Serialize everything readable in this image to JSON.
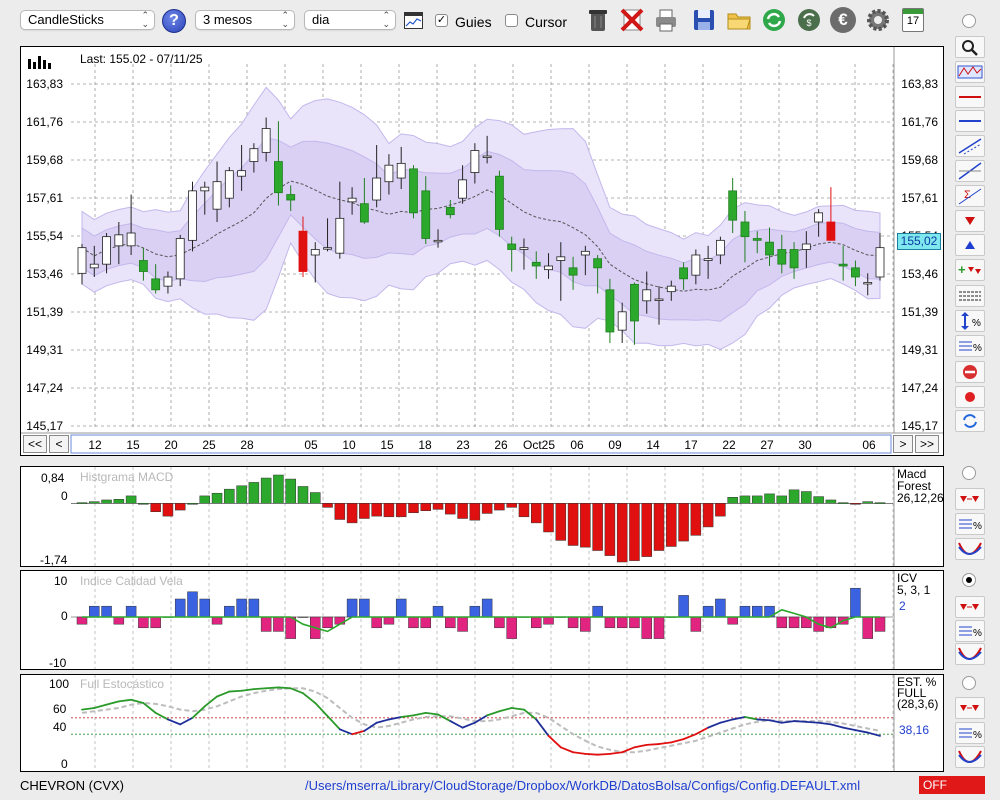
{
  "toolbar": {
    "chart_type": "CandleSticks",
    "help": "?",
    "period": "3 mesos",
    "interval": "dia",
    "guides_label": "Guies",
    "guides_checked": true,
    "cursor_label": "Cursor",
    "cursor_checked": false,
    "calendar_day": "17",
    "euro": "€"
  },
  "price_chart": {
    "last_label": "Last: 155.02 - 07/11/25",
    "current_price": "155,02",
    "y_ticks": [
      "163,83",
      "161,76",
      "159,68",
      "157,61",
      "155,54",
      "153,46",
      "151,39",
      "149,31",
      "147,24",
      "145,17"
    ],
    "x_ticks": [
      "12",
      "15",
      "20",
      "25",
      "28",
      "05",
      "10",
      "15",
      "18",
      "23",
      "26",
      "Oct25",
      "06",
      "09",
      "14",
      "17",
      "22",
      "27",
      "30",
      "06"
    ],
    "nav_left2": "<<",
    "nav_left1": "<",
    "nav_right1": ">",
    "nav_right2": ">>",
    "colors": {
      "up": "#ffffff",
      "down": "#2ca82c",
      "highlight": "#e01010",
      "band_outer": "#e6e0f8",
      "band_inner": "#d6cdf3"
    }
  },
  "macd": {
    "title": "Histgrama MACD",
    "y_ticks": [
      "0,84",
      "0",
      "-1,74"
    ],
    "side_label_1": "Macd",
    "side_label_2": "Forest",
    "side_label_3": "26,12,26"
  },
  "icv": {
    "title": "Indice Calidad Vela",
    "y_ticks": [
      "10",
      "0",
      "-10"
    ],
    "side_label_1": "ICV",
    "side_label_2": "5, 3, 1",
    "side_value": "2"
  },
  "stoch": {
    "title": "Full Estocástico",
    "y_ticks": [
      "100",
      "60",
      "40",
      "0"
    ],
    "side_label_1": "EST. %",
    "side_label_2": "FULL",
    "side_label_3": "(28,3,6)",
    "side_value": "38,16"
  },
  "status": {
    "ticker": "CHEVRON (CVX)",
    "config_path": "/Users/mserra/Library/CloudStorage/Dropbox/WorkDB/DatosBolsa/Configs/Config.DEFAULT.xml",
    "mode": "OFF"
  }
}
